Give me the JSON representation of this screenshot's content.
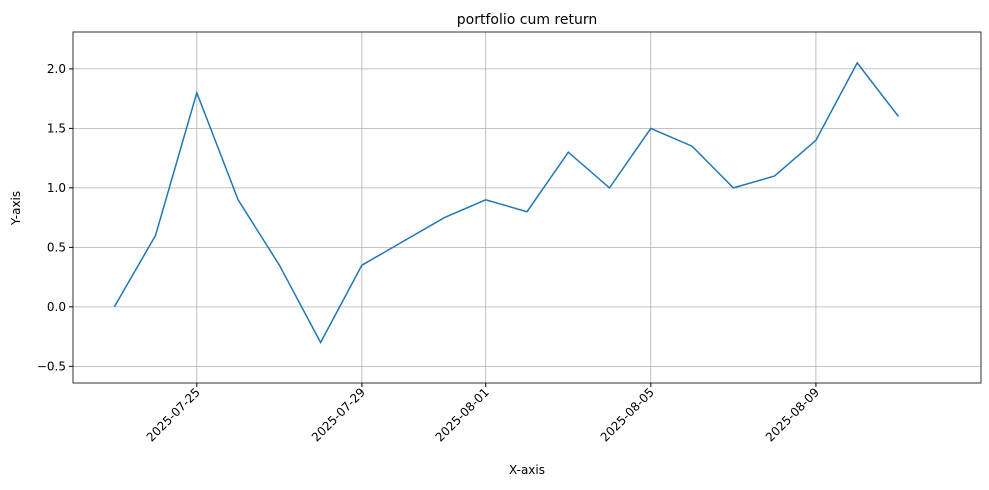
{
  "chart_data": {
    "type": "line",
    "title": "portfolio cum return",
    "xlabel": "X-axis",
    "ylabel": "Y-axis",
    "x": [
      "2025-07-23",
      "2025-07-24",
      "2025-07-25",
      "2025-07-26",
      "2025-07-27",
      "2025-07-28",
      "2025-07-29",
      "2025-07-30",
      "2025-07-31",
      "2025-08-01",
      "2025-08-02",
      "2025-08-03",
      "2025-08-04",
      "2025-08-05",
      "2025-08-06",
      "2025-08-07",
      "2025-08-08",
      "2025-08-09",
      "2025-08-10",
      "2025-08-11"
    ],
    "series": [
      {
        "name": "portfolio",
        "color": "#1f77b4",
        "values": [
          0.0,
          0.6,
          1.8,
          0.9,
          0.35,
          -0.3,
          0.35,
          0.55,
          0.75,
          0.9,
          0.8,
          1.3,
          1.0,
          1.5,
          1.35,
          1.0,
          1.1,
          1.4,
          2.05,
          1.6
        ]
      }
    ],
    "xlim": [
      "2025-07-22",
      "2025-08-13"
    ],
    "xticks": [
      "2025-07-25",
      "2025-07-29",
      "2025-08-01",
      "2025-08-05",
      "2025-08-09"
    ],
    "ylim": [
      -0.64,
      2.31
    ],
    "yticks": [
      {
        "value": -0.5,
        "label": "−0.5"
      },
      {
        "value": 0,
        "label": "0.0"
      },
      {
        "value": 0.5,
        "label": "0.5"
      },
      {
        "value": 1,
        "label": "1.0"
      },
      {
        "value": 1.5,
        "label": "1.5"
      },
      {
        "value": 2,
        "label": "2.0"
      }
    ],
    "grid": true
  }
}
